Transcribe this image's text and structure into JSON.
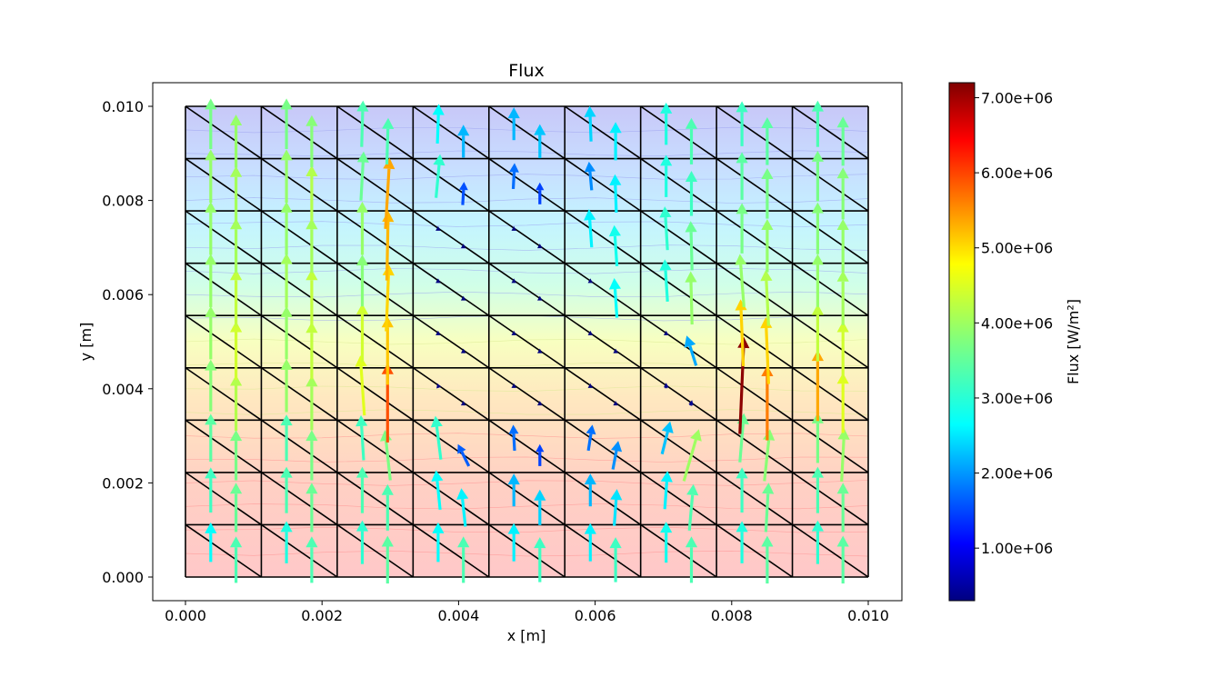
{
  "chart_data": {
    "type": "quiver",
    "title": "Flux",
    "xlabel": "x [m]",
    "ylabel": "y [m]",
    "xlim": [
      -7e-05,
      0.01007
    ],
    "ylim": [
      -0.0005,
      0.0105
    ],
    "xticks": [
      0.0,
      0.002,
      0.004,
      0.006,
      0.008,
      0.01
    ],
    "xtick_labels": [
      "0.000",
      "0.002",
      "0.004",
      "0.006",
      "0.008",
      "0.010"
    ],
    "yticks": [
      0.0,
      0.002,
      0.004,
      0.006,
      0.008,
      0.01
    ],
    "ytick_labels": [
      "0.000",
      "0.002",
      "0.004",
      "0.006",
      "0.008",
      "0.010"
    ],
    "mesh": {
      "x_divisions": 9,
      "y_divisions": 9,
      "x_range": [
        0.0,
        0.01
      ],
      "y_range": [
        0.0,
        0.01
      ],
      "diagonal": "top-left to bottom-right"
    },
    "contour_fill": {
      "quantity": "temperature field (unlabeled)",
      "bottom_color": "#ffc8c8",
      "middle_color": "#f8ffc0",
      "top_color": "#c8c8f8"
    },
    "colorbar": {
      "label": "Flux [W/m²]",
      "colormap": "jet",
      "vmin": 300000,
      "vmax": 7200000,
      "ticks": [
        1000000,
        2000000,
        3000000,
        4000000,
        5000000,
        6000000,
        7000000
      ],
      "tick_labels": [
        "1.00e+06",
        "2.00e+06",
        "3.00e+06",
        "4.00e+06",
        "5.00e+06",
        "6.00e+06",
        "7.00e+06"
      ]
    },
    "arrow_scale_m_per_Wm2": 2e-10,
    "vectors_note": "u, v in W/m^2; magnitude sets colour",
    "vectors": [
      {
        "x": 0.00037,
        "y": 0.00074,
        "u": 0,
        "v": 2900000
      },
      {
        "x": 0.00074,
        "y": 0.00037,
        "u": 0,
        "v": 3400000
      },
      {
        "x": 0.00148,
        "y": 0.00074,
        "u": 0,
        "v": 3100000
      },
      {
        "x": 0.00185,
        "y": 0.00037,
        "u": 0,
        "v": 3400000
      },
      {
        "x": 0.00259,
        "y": 0.00074,
        "u": 0,
        "v": 3200000
      },
      {
        "x": 0.00296,
        "y": 0.00037,
        "u": 0,
        "v": 3500000
      },
      {
        "x": 0.0037,
        "y": 0.00074,
        "u": 0,
        "v": 2900000
      },
      {
        "x": 0.00407,
        "y": 0.00037,
        "u": 0,
        "v": 3400000
      },
      {
        "x": 0.00481,
        "y": 0.00074,
        "u": 0,
        "v": 2800000
      },
      {
        "x": 0.00519,
        "y": 0.00037,
        "u": 0,
        "v": 3300000
      },
      {
        "x": 0.00593,
        "y": 0.00074,
        "u": 0,
        "v": 2800000
      },
      {
        "x": 0.0063,
        "y": 0.00037,
        "u": 0,
        "v": 3300000
      },
      {
        "x": 0.00704,
        "y": 0.00074,
        "u": 0,
        "v": 3000000
      },
      {
        "x": 0.00741,
        "y": 0.00037,
        "u": 0,
        "v": 3400000
      },
      {
        "x": 0.00815,
        "y": 0.00074,
        "u": 0,
        "v": 3100000
      },
      {
        "x": 0.00852,
        "y": 0.00037,
        "u": 0,
        "v": 3500000
      },
      {
        "x": 0.00926,
        "y": 0.00074,
        "u": 0,
        "v": 3200000
      },
      {
        "x": 0.00963,
        "y": 0.00037,
        "u": 0,
        "v": 3500000
      },
      {
        "x": 0.00037,
        "y": 0.00185,
        "u": 0,
        "v": 3300000
      },
      {
        "x": 0.00074,
        "y": 0.00148,
        "u": 0,
        "v": 3600000
      },
      {
        "x": 0.00148,
        "y": 0.00185,
        "u": 0,
        "v": 3400000
      },
      {
        "x": 0.00185,
        "y": 0.00148,
        "u": 0,
        "v": 3600000
      },
      {
        "x": 0.00259,
        "y": 0.00185,
        "u": 0,
        "v": 3400000
      },
      {
        "x": 0.00296,
        "y": 0.00148,
        "u": 0,
        "v": 3400000
      },
      {
        "x": 0.0037,
        "y": 0.00185,
        "u": -300000,
        "v": 2900000
      },
      {
        "x": 0.00407,
        "y": 0.00148,
        "u": -300000,
        "v": 2800000
      },
      {
        "x": 0.00481,
        "y": 0.00185,
        "u": 0,
        "v": 2400000
      },
      {
        "x": 0.00519,
        "y": 0.00148,
        "u": 0,
        "v": 2600000
      },
      {
        "x": 0.00593,
        "y": 0.00185,
        "u": 0,
        "v": 2400000
      },
      {
        "x": 0.0063,
        "y": 0.00148,
        "u": 200000,
        "v": 2700000
      },
      {
        "x": 0.00704,
        "y": 0.00185,
        "u": 200000,
        "v": 2800000
      },
      {
        "x": 0.00741,
        "y": 0.00148,
        "u": 300000,
        "v": 3400000
      },
      {
        "x": 0.00815,
        "y": 0.00185,
        "u": 0,
        "v": 3300000
      },
      {
        "x": 0.00852,
        "y": 0.00148,
        "u": 200000,
        "v": 3600000
      },
      {
        "x": 0.00926,
        "y": 0.00185,
        "u": 0,
        "v": 3400000
      },
      {
        "x": 0.00963,
        "y": 0.00148,
        "u": 0,
        "v": 3600000
      },
      {
        "x": 0.00037,
        "y": 0.00296,
        "u": 0,
        "v": 3500000
      },
      {
        "x": 0.00074,
        "y": 0.00259,
        "u": 0,
        "v": 3700000
      },
      {
        "x": 0.00148,
        "y": 0.00296,
        "u": 0,
        "v": 3400000
      },
      {
        "x": 0.00185,
        "y": 0.00259,
        "u": 0,
        "v": 3700000
      },
      {
        "x": 0.00259,
        "y": 0.00296,
        "u": -200000,
        "v": 3300000
      },
      {
        "x": 0.00296,
        "y": 0.00259,
        "u": -400000,
        "v": 3700000
      },
      {
        "x": 0.0037,
        "y": 0.00296,
        "u": -400000,
        "v": 3200000
      },
      {
        "x": 0.00407,
        "y": 0.00259,
        "u": -800000,
        "v": 1600000
      },
      {
        "x": 0.00481,
        "y": 0.00296,
        "u": -100000,
        "v": 1900000
      },
      {
        "x": 0.00519,
        "y": 0.00259,
        "u": 0,
        "v": 1600000
      },
      {
        "x": 0.00593,
        "y": 0.00296,
        "u": 300000,
        "v": 1900000
      },
      {
        "x": 0.0063,
        "y": 0.00259,
        "u": 400000,
        "v": 2100000
      },
      {
        "x": 0.00704,
        "y": 0.00296,
        "u": 600000,
        "v": 2400000
      },
      {
        "x": 0.00741,
        "y": 0.00259,
        "u": 1100000,
        "v": 3800000
      },
      {
        "x": 0.00815,
        "y": 0.00296,
        "u": 300000,
        "v": 3600000
      },
      {
        "x": 0.00852,
        "y": 0.00259,
        "u": 400000,
        "v": 3800000
      },
      {
        "x": 0.00926,
        "y": 0.00296,
        "u": 0,
        "v": 3700000
      },
      {
        "x": 0.00963,
        "y": 0.00259,
        "u": 200000,
        "v": 3900000
      },
      {
        "x": 0.00037,
        "y": 0.00407,
        "u": 0,
        "v": 3800000
      },
      {
        "x": 0.00074,
        "y": 0.0037,
        "u": 0,
        "v": 4100000
      },
      {
        "x": 0.00148,
        "y": 0.00407,
        "u": 0,
        "v": 3900000
      },
      {
        "x": 0.00185,
        "y": 0.0037,
        "u": 0,
        "v": 4000000
      },
      {
        "x": 0.00259,
        "y": 0.00407,
        "u": -300000,
        "v": 4400000
      },
      {
        "x": 0.00296,
        "y": 0.0037,
        "u": 0,
        "v": 5800000
      },
      {
        "x": 0.0037,
        "y": 0.00407,
        "u": -100000,
        "v": 300000
      },
      {
        "x": 0.00407,
        "y": 0.0037,
        "u": 0,
        "v": 300000
      },
      {
        "x": 0.00481,
        "y": 0.00407,
        "u": 0,
        "v": 300000
      },
      {
        "x": 0.00519,
        "y": 0.0037,
        "u": 0,
        "v": 300000
      },
      {
        "x": 0.00593,
        "y": 0.00407,
        "u": 0,
        "v": 300000
      },
      {
        "x": 0.0063,
        "y": 0.0037,
        "u": 0,
        "v": 300000
      },
      {
        "x": 0.00704,
        "y": 0.00407,
        "u": 0,
        "v": 400000
      },
      {
        "x": 0.00741,
        "y": 0.0037,
        "u": 100000,
        "v": 400000
      },
      {
        "x": 0.00815,
        "y": 0.00407,
        "u": 300000,
        "v": 7100000
      },
      {
        "x": 0.00852,
        "y": 0.0037,
        "u": 0,
        "v": 5500000
      },
      {
        "x": 0.00926,
        "y": 0.00407,
        "u": 0,
        "v": 5200000
      },
      {
        "x": 0.00963,
        "y": 0.0037,
        "u": 0,
        "v": 4400000
      },
      {
        "x": 0.00037,
        "y": 0.00519,
        "u": 0,
        "v": 3900000
      },
      {
        "x": 0.00074,
        "y": 0.00481,
        "u": 0,
        "v": 4300000
      },
      {
        "x": 0.00148,
        "y": 0.00519,
        "u": 0,
        "v": 3900000
      },
      {
        "x": 0.00185,
        "y": 0.00481,
        "u": 0,
        "v": 4200000
      },
      {
        "x": 0.00259,
        "y": 0.00519,
        "u": 0,
        "v": 4300000
      },
      {
        "x": 0.00296,
        "y": 0.00481,
        "u": 0,
        "v": 5000000
      },
      {
        "x": 0.0037,
        "y": 0.00519,
        "u": 0,
        "v": 300000
      },
      {
        "x": 0.00407,
        "y": 0.00481,
        "u": 0,
        "v": 300000
      },
      {
        "x": 0.00481,
        "y": 0.00519,
        "u": 0,
        "v": 300000
      },
      {
        "x": 0.00519,
        "y": 0.00481,
        "u": 0,
        "v": 300000
      },
      {
        "x": 0.00593,
        "y": 0.00519,
        "u": 0,
        "v": 300000
      },
      {
        "x": 0.0063,
        "y": 0.00481,
        "u": 0,
        "v": 300000
      },
      {
        "x": 0.00704,
        "y": 0.00519,
        "u": 0,
        "v": 300000
      },
      {
        "x": 0.00741,
        "y": 0.00481,
        "u": -700000,
        "v": 2200000
      },
      {
        "x": 0.00815,
        "y": 0.00519,
        "u": -200000,
        "v": 4900000
      },
      {
        "x": 0.00852,
        "y": 0.00481,
        "u": -200000,
        "v": 4900000
      },
      {
        "x": 0.00926,
        "y": 0.00519,
        "u": 0,
        "v": 4200000
      },
      {
        "x": 0.00963,
        "y": 0.00481,
        "u": 0,
        "v": 4300000
      },
      {
        "x": 0.00037,
        "y": 0.0063,
        "u": 0,
        "v": 3900000
      },
      {
        "x": 0.00074,
        "y": 0.00593,
        "u": 0,
        "v": 4200000
      },
      {
        "x": 0.00148,
        "y": 0.0063,
        "u": 0,
        "v": 4000000
      },
      {
        "x": 0.00185,
        "y": 0.00593,
        "u": 0,
        "v": 4200000
      },
      {
        "x": 0.00259,
        "y": 0.0063,
        "u": 0,
        "v": 3800000
      },
      {
        "x": 0.00296,
        "y": 0.00593,
        "u": 200000,
        "v": 4900000
      },
      {
        "x": 0.0037,
        "y": 0.0063,
        "u": 0,
        "v": 300000
      },
      {
        "x": 0.00407,
        "y": 0.00593,
        "u": 0,
        "v": 300000
      },
      {
        "x": 0.00481,
        "y": 0.0063,
        "u": 0,
        "v": 300000
      },
      {
        "x": 0.00519,
        "y": 0.00593,
        "u": 0,
        "v": 300000
      },
      {
        "x": 0.00593,
        "y": 0.0063,
        "u": 0,
        "v": 300000
      },
      {
        "x": 0.0063,
        "y": 0.00593,
        "u": -200000,
        "v": 2900000
      },
      {
        "x": 0.00704,
        "y": 0.0063,
        "u": -200000,
        "v": 3100000
      },
      {
        "x": 0.00741,
        "y": 0.00593,
        "u": -100000,
        "v": 3900000
      },
      {
        "x": 0.00815,
        "y": 0.0063,
        "u": -300000,
        "v": 3900000
      },
      {
        "x": 0.00852,
        "y": 0.00593,
        "u": -200000,
        "v": 4100000
      },
      {
        "x": 0.00926,
        "y": 0.0063,
        "u": 0,
        "v": 3900000
      },
      {
        "x": 0.00963,
        "y": 0.00593,
        "u": 0,
        "v": 4000000
      },
      {
        "x": 0.00037,
        "y": 0.00741,
        "u": 0,
        "v": 3900000
      },
      {
        "x": 0.00074,
        "y": 0.00704,
        "u": 0,
        "v": 4000000
      },
      {
        "x": 0.00148,
        "y": 0.00741,
        "u": 0,
        "v": 3900000
      },
      {
        "x": 0.00185,
        "y": 0.00704,
        "u": 0,
        "v": 4000000
      },
      {
        "x": 0.00259,
        "y": 0.00741,
        "u": 0,
        "v": 3900000
      },
      {
        "x": 0.00296,
        "y": 0.00704,
        "u": 100000,
        "v": 5100000
      },
      {
        "x": 0.0037,
        "y": 0.00741,
        "u": 0,
        "v": 300000
      },
      {
        "x": 0.00407,
        "y": 0.00704,
        "u": 0,
        "v": 300000
      },
      {
        "x": 0.00481,
        "y": 0.00741,
        "u": 0,
        "v": 300000
      },
      {
        "x": 0.00519,
        "y": 0.00704,
        "u": 0,
        "v": 300000
      },
      {
        "x": 0.00593,
        "y": 0.00741,
        "u": -200000,
        "v": 2800000
      },
      {
        "x": 0.0063,
        "y": 0.00704,
        "u": -200000,
        "v": 3000000
      },
      {
        "x": 0.00704,
        "y": 0.00741,
        "u": -200000,
        "v": 3200000
      },
      {
        "x": 0.00741,
        "y": 0.00704,
        "u": -100000,
        "v": 3600000
      },
      {
        "x": 0.00815,
        "y": 0.00741,
        "u": 0,
        "v": 3700000
      },
      {
        "x": 0.00852,
        "y": 0.00704,
        "u": 0,
        "v": 3900000
      },
      {
        "x": 0.00926,
        "y": 0.00741,
        "u": 0,
        "v": 3800000
      },
      {
        "x": 0.00963,
        "y": 0.00704,
        "u": 0,
        "v": 3900000
      },
      {
        "x": 0.00037,
        "y": 0.00852,
        "u": 0,
        "v": 3900000
      },
      {
        "x": 0.00074,
        "y": 0.00815,
        "u": 0,
        "v": 4000000
      },
      {
        "x": 0.00148,
        "y": 0.00852,
        "u": 0,
        "v": 3900000
      },
      {
        "x": 0.00185,
        "y": 0.00815,
        "u": 0,
        "v": 4100000
      },
      {
        "x": 0.00259,
        "y": 0.00852,
        "u": 200000,
        "v": 3600000
      },
      {
        "x": 0.00296,
        "y": 0.00815,
        "u": 300000,
        "v": 5200000
      },
      {
        "x": 0.0037,
        "y": 0.00852,
        "u": 300000,
        "v": 3200000
      },
      {
        "x": 0.00407,
        "y": 0.00815,
        "u": 100000,
        "v": 1700000
      },
      {
        "x": 0.00481,
        "y": 0.00852,
        "u": 100000,
        "v": 1900000
      },
      {
        "x": 0.00519,
        "y": 0.00815,
        "u": 0,
        "v": 1600000
      },
      {
        "x": 0.00593,
        "y": 0.00852,
        "u": -200000,
        "v": 2100000
      },
      {
        "x": 0.0063,
        "y": 0.00815,
        "u": -100000,
        "v": 2800000
      },
      {
        "x": 0.00704,
        "y": 0.00852,
        "u": 0,
        "v": 3100000
      },
      {
        "x": 0.00741,
        "y": 0.00815,
        "u": 0,
        "v": 3300000
      },
      {
        "x": 0.00815,
        "y": 0.00852,
        "u": 0,
        "v": 3500000
      },
      {
        "x": 0.00852,
        "y": 0.00815,
        "u": 0,
        "v": 3700000
      },
      {
        "x": 0.00926,
        "y": 0.00852,
        "u": 0,
        "v": 3700000
      },
      {
        "x": 0.00963,
        "y": 0.00815,
        "u": 0,
        "v": 3800000
      },
      {
        "x": 0.00037,
        "y": 0.00963,
        "u": 0,
        "v": 3700000
      },
      {
        "x": 0.00074,
        "y": 0.00926,
        "u": 0,
        "v": 3900000
      },
      {
        "x": 0.00148,
        "y": 0.00963,
        "u": 0,
        "v": 3700000
      },
      {
        "x": 0.00185,
        "y": 0.00926,
        "u": 0,
        "v": 3800000
      },
      {
        "x": 0.00259,
        "y": 0.00963,
        "u": 100000,
        "v": 3400000
      },
      {
        "x": 0.00296,
        "y": 0.00926,
        "u": 100000,
        "v": 3400000
      },
      {
        "x": 0.0037,
        "y": 0.00963,
        "u": 100000,
        "v": 2900000
      },
      {
        "x": 0.00407,
        "y": 0.00926,
        "u": 0,
        "v": 2400000
      },
      {
        "x": 0.00481,
        "y": 0.00963,
        "u": 0,
        "v": 2400000
      },
      {
        "x": 0.00519,
        "y": 0.00926,
        "u": 0,
        "v": 2500000
      },
      {
        "x": 0.00593,
        "y": 0.00963,
        "u": -100000,
        "v": 2600000
      },
      {
        "x": 0.0063,
        "y": 0.00926,
        "u": 0,
        "v": 2800000
      },
      {
        "x": 0.00704,
        "y": 0.00963,
        "u": 0,
        "v": 3100000
      },
      {
        "x": 0.00741,
        "y": 0.00926,
        "u": 0,
        "v": 3400000
      },
      {
        "x": 0.00815,
        "y": 0.00963,
        "u": 0,
        "v": 3300000
      },
      {
        "x": 0.00852,
        "y": 0.00926,
        "u": 0,
        "v": 3500000
      },
      {
        "x": 0.00926,
        "y": 0.00963,
        "u": 0,
        "v": 3400000
      },
      {
        "x": 0.00963,
        "y": 0.00926,
        "u": 0,
        "v": 3600000
      }
    ]
  }
}
